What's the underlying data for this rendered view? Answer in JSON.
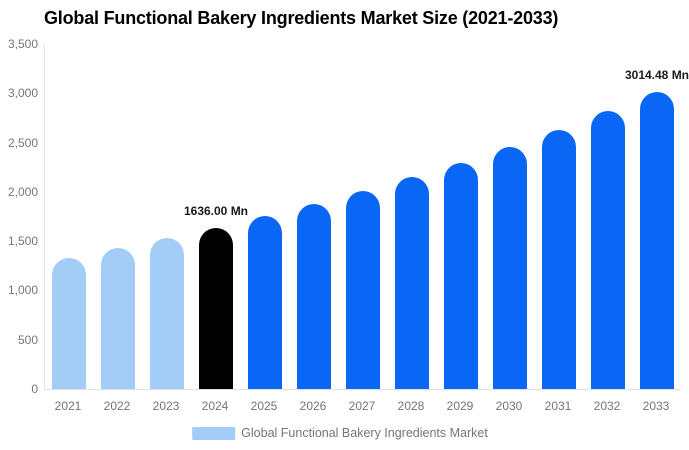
{
  "title": "Global Functional Bakery Ingredients Market Size (2021-2033)",
  "legend": {
    "label": "Global Functional Bakery Ingredients Market",
    "swatch_color": "#a3ccf7"
  },
  "colors": {
    "historical_bar": "#a3ccf7",
    "base_year_bar": "#000000",
    "forecast_bar": "#0a66f5",
    "axis_line": "#e2e2e2",
    "tick_text": "#757575",
    "annotation_text": "#1a1a1a"
  },
  "chart_data": {
    "type": "bar",
    "title": "Global Functional Bakery Ingredients Market Size (2021-2033)",
    "categories": [
      "2021",
      "2022",
      "2023",
      "2024",
      "2025",
      "2026",
      "2027",
      "2028",
      "2029",
      "2030",
      "2031",
      "2032",
      "2033"
    ],
    "values": [
      1334,
      1428,
      1529,
      1636.0,
      1751,
      1874,
      2006,
      2147,
      2298,
      2459,
      2632,
      2817,
      3014.48
    ],
    "bar_colors": [
      "#a3ccf7",
      "#a3ccf7",
      "#a3ccf7",
      "#000000",
      "#0a66f5",
      "#0a66f5",
      "#0a66f5",
      "#0a66f5",
      "#0a66f5",
      "#0a66f5",
      "#0a66f5",
      "#0a66f5",
      "#0a66f5"
    ],
    "unit": "Mn",
    "xlabel": "",
    "ylabel": "",
    "ylim": [
      0,
      3500
    ],
    "grid": false,
    "legend_position": "bottom",
    "y_ticks": [
      {
        "value": 0,
        "label": "0"
      },
      {
        "value": 500,
        "label": "500"
      },
      {
        "value": 1000,
        "label": "1,000"
      },
      {
        "value": 1500,
        "label": "1,500"
      },
      {
        "value": 2000,
        "label": "2,000"
      },
      {
        "value": 2500,
        "label": "2,500"
      },
      {
        "value": 3000,
        "label": "3,000"
      },
      {
        "value": 3500,
        "label": "3,500"
      }
    ],
    "annotations": [
      {
        "category": "2024",
        "text": "1636.00 Mn"
      },
      {
        "category": "2033",
        "text": "3014.48 Mn"
      }
    ]
  }
}
